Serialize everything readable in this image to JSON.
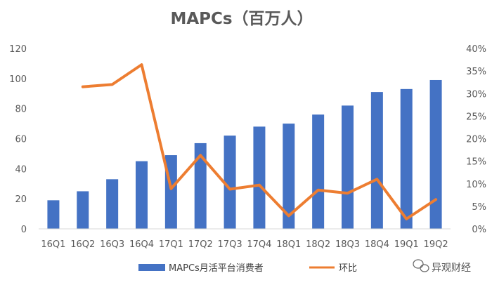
{
  "chart_data": {
    "type": "bar",
    "title": "MAPCs（百万人）",
    "categories": [
      "16Q1",
      "16Q2",
      "16Q3",
      "16Q4",
      "17Q1",
      "17Q2",
      "17Q3",
      "17Q4",
      "18Q1",
      "18Q2",
      "18Q3",
      "18Q4",
      "19Q1",
      "19Q2"
    ],
    "series": [
      {
        "name": "MAPCs月活平台消费者",
        "type": "bar",
        "axis": "left",
        "color": "#4472C4",
        "values": [
          19,
          25,
          33,
          45,
          49,
          57,
          62,
          68,
          70,
          76,
          82,
          91,
          93,
          99
        ]
      },
      {
        "name": "环比",
        "type": "line",
        "axis": "right",
        "color": "#ED7D31",
        "values": [
          null,
          0.315,
          0.32,
          0.364,
          0.089,
          0.163,
          0.088,
          0.097,
          0.029,
          0.086,
          0.079,
          0.11,
          0.022,
          0.065
        ]
      }
    ],
    "left_axis": {
      "min": 0,
      "max": 120,
      "ticks": [
        0,
        20,
        40,
        60,
        80,
        100,
        120
      ]
    },
    "right_axis": {
      "min": 0,
      "max": 0.4,
      "ticks": [
        0,
        0.05,
        0.1,
        0.15,
        0.2,
        0.25,
        0.3,
        0.35,
        0.4
      ],
      "tick_labels": [
        "0%",
        "5%",
        "10%",
        "15%",
        "20%",
        "25%",
        "30%",
        "35%",
        "40%"
      ]
    },
    "grid": false,
    "legend_position": "bottom"
  },
  "watermark": {
    "text": "异观财经",
    "icon": "wechat-icon"
  }
}
